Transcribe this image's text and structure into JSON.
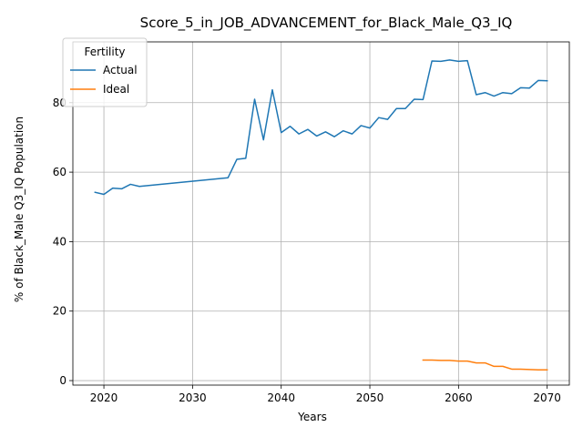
{
  "chart_data": {
    "type": "line",
    "title": "Score_5_in_JOB_ADVANCEMENT_for_Black_Male_Q3_IQ",
    "xlabel": "Years",
    "ylabel": "% of Black_Male Q3_IQ Population",
    "xlim": [
      2016.5,
      2072.5
    ],
    "ylim": [
      -1.3,
      97.5
    ],
    "xticks": [
      2020,
      2030,
      2040,
      2050,
      2060,
      2070
    ],
    "yticks": [
      0,
      20,
      40,
      60,
      80
    ],
    "grid": true,
    "legend": {
      "title": "Fertility",
      "placement": "top-left"
    },
    "series": [
      {
        "name": "Actual",
        "color": "#1f77b4",
        "x": [
          2019,
          2020,
          2021,
          2022,
          2023,
          2024,
          2034,
          2035,
          2036,
          2037,
          2038,
          2039,
          2040,
          2041,
          2042,
          2043,
          2044,
          2045,
          2046,
          2047,
          2048,
          2049,
          2050,
          2051,
          2052,
          2053,
          2054,
          2055,
          2056,
          2057,
          2058,
          2059,
          2060,
          2061,
          2062,
          2063,
          2064,
          2065,
          2066,
          2067,
          2068,
          2069,
          2070
        ],
        "y": [
          54.2,
          53.6,
          55.4,
          55.2,
          56.5,
          55.9,
          58.4,
          63.7,
          64.0,
          81.0,
          69.3,
          83.7,
          71.4,
          73.2,
          71.0,
          72.3,
          70.4,
          71.6,
          70.2,
          71.9,
          71.0,
          73.4,
          72.7,
          75.7,
          75.2,
          78.3,
          78.3,
          81.0,
          80.9,
          92.0,
          91.9,
          92.3,
          91.9,
          92.1,
          82.3,
          82.9,
          81.9,
          82.9,
          82.6,
          84.3,
          84.2,
          86.4,
          86.3
        ]
      },
      {
        "name": "Ideal",
        "color": "#ff7f0e",
        "x": [
          2056,
          2057,
          2058,
          2059,
          2060,
          2061,
          2062,
          2063,
          2064,
          2065,
          2066,
          2067,
          2068,
          2069,
          2070
        ],
        "y": [
          5.9,
          5.9,
          5.8,
          5.8,
          5.6,
          5.6,
          5.1,
          5.1,
          4.1,
          4.1,
          3.3,
          3.3,
          3.2,
          3.1,
          3.1
        ]
      }
    ]
  }
}
